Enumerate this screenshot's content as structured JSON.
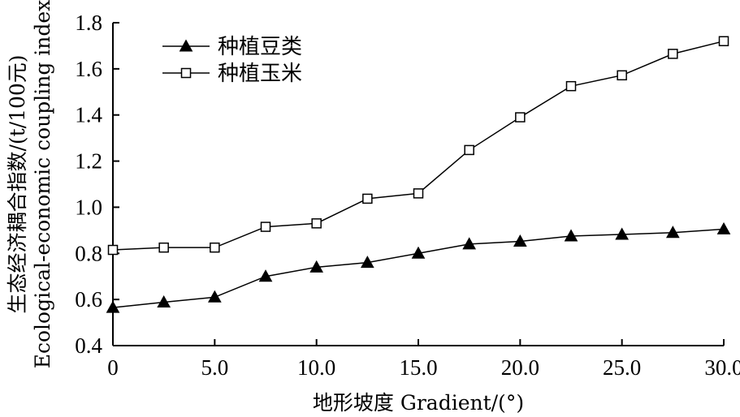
{
  "chart_data": {
    "type": "line",
    "xlabel": "地形坡度 Gradient/(°)",
    "ylabel_cn": "生态经济耦合指数/(t/100元)",
    "ylabel_en": "Ecological-economic coupling index",
    "xlim": [
      0,
      30
    ],
    "ylim": [
      0.4,
      1.8
    ],
    "x_ticks": [
      "0",
      "5.0",
      "10.0",
      "15.0",
      "20.0",
      "25.0",
      "30.0"
    ],
    "y_ticks": [
      "0.4",
      "0.6",
      "0.8",
      "1.0",
      "1.2",
      "1.4",
      "1.6",
      "1.8"
    ],
    "grid": false,
    "legend_position": "top-left",
    "x": [
      0,
      2.5,
      5,
      7.5,
      10,
      12.5,
      15,
      17.5,
      20,
      22.5,
      25,
      27.5,
      30
    ],
    "series": [
      {
        "name": "种植豆类",
        "marker": "filled-triangle",
        "values": [
          0.565,
          0.588,
          0.61,
          0.7,
          0.74,
          0.76,
          0.8,
          0.84,
          0.852,
          0.875,
          0.882,
          0.89,
          0.905
        ]
      },
      {
        "name": "种植玉米",
        "marker": "open-square",
        "values": [
          0.815,
          0.825,
          0.825,
          0.915,
          0.93,
          1.037,
          1.06,
          1.248,
          1.39,
          1.525,
          1.572,
          1.665,
          1.72
        ]
      }
    ]
  }
}
